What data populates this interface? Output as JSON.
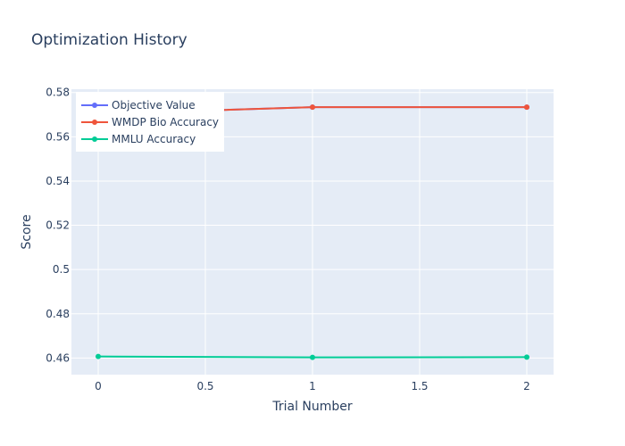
{
  "chart_data": {
    "type": "line",
    "title": "Optimization History",
    "xlabel": "Trial Number",
    "ylabel": "Score",
    "x": [
      0,
      1,
      2
    ],
    "xlim": [
      -0.125,
      2.125
    ],
    "ylim": [
      0.4525,
      0.5815
    ],
    "x_ticks": [
      0,
      0.5,
      1,
      1.5,
      2
    ],
    "x_tick_labels": [
      "0",
      "0.5",
      "1",
      "1.5",
      "2"
    ],
    "y_ticks": [
      0.46,
      0.48,
      0.5,
      0.52,
      0.54,
      0.56,
      0.58
    ],
    "y_tick_labels": [
      "0.46",
      "0.48",
      "0.5",
      "0.52",
      "0.54",
      "0.56",
      "0.58"
    ],
    "grid": true,
    "legend_position": "top-left",
    "plot_background": "#e5ecf6",
    "series": [
      {
        "name": "Objective Value",
        "color": "#636efa",
        "values": [
          0.5703,
          0.5734,
          0.5734
        ]
      },
      {
        "name": "WMDP Bio Accuracy",
        "color": "#ef553b",
        "values": [
          0.5703,
          0.5734,
          0.5734
        ]
      },
      {
        "name": "MMLU Accuracy",
        "color": "#00cc96",
        "values": [
          0.4607,
          0.4603,
          0.4604
        ]
      }
    ]
  }
}
